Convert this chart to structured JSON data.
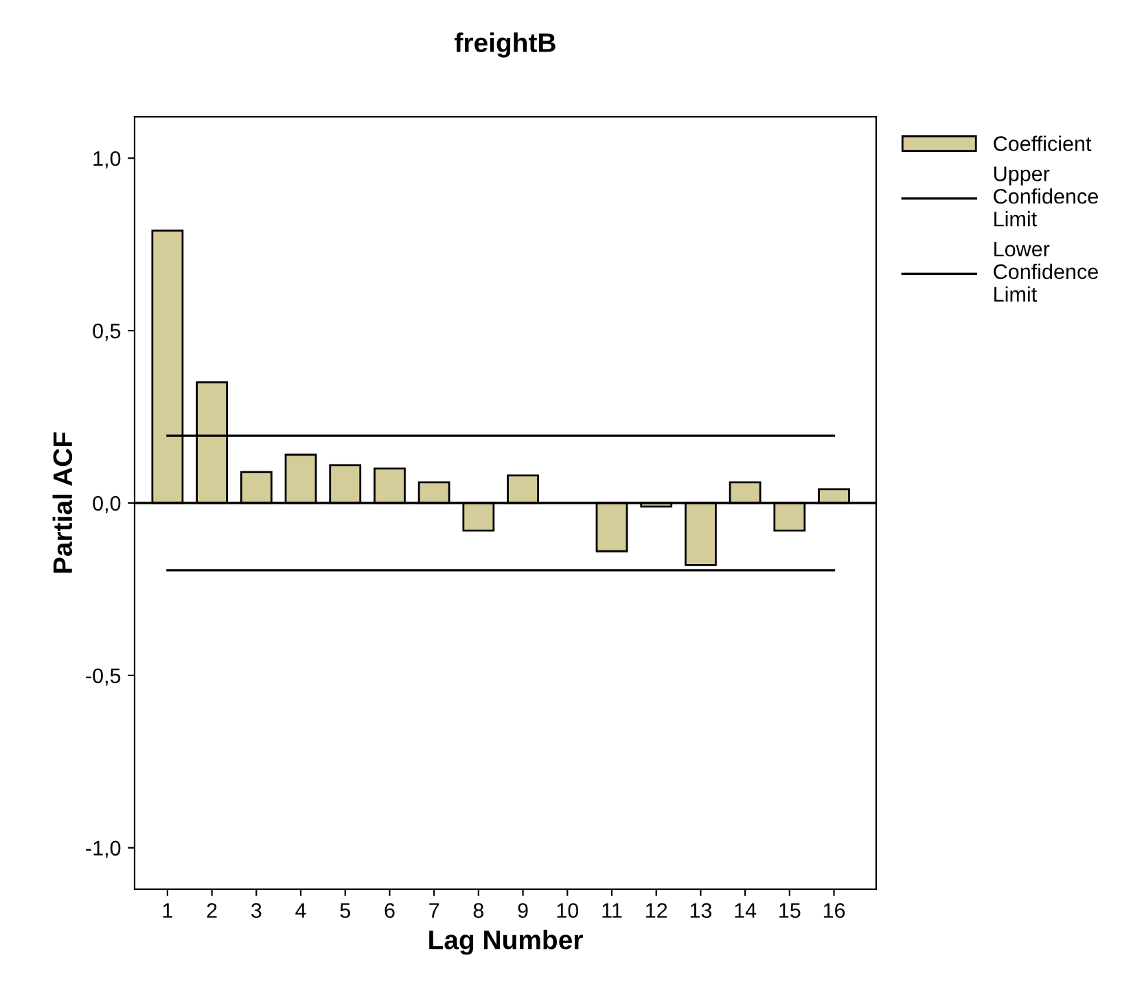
{
  "chart_data": {
    "type": "bar",
    "title": "freightB",
    "xlabel": "Lag Number",
    "ylabel": "Partial ACF",
    "categories": [
      "1",
      "2",
      "3",
      "4",
      "5",
      "6",
      "7",
      "8",
      "9",
      "10",
      "11",
      "12",
      "13",
      "14",
      "15",
      "16"
    ],
    "series": [
      {
        "name": "Coefficient",
        "color": "#d4cc99",
        "values": [
          0.79,
          0.35,
          0.09,
          0.14,
          0.11,
          0.1,
          0.06,
          -0.08,
          0.08,
          null,
          -0.14,
          -0.01,
          -0.18,
          0.06,
          -0.08,
          0.04
        ]
      },
      {
        "name": "Upper Confidence Limit",
        "type": "line",
        "color": "#000000",
        "values": [
          0.195,
          0.195,
          0.195,
          0.195,
          0.195,
          0.195,
          0.195,
          0.195,
          0.195,
          0.195,
          0.195,
          0.195,
          0.195,
          0.195,
          0.195,
          0.195
        ]
      },
      {
        "name": "Lower Confidence Limit",
        "type": "line",
        "color": "#000000",
        "values": [
          -0.195,
          -0.195,
          -0.195,
          -0.195,
          -0.195,
          -0.195,
          -0.195,
          -0.195,
          -0.195,
          -0.195,
          -0.195,
          -0.195,
          -0.195,
          -0.195,
          -0.195,
          -0.195
        ]
      }
    ],
    "ylim": [
      -1.12,
      1.12
    ],
    "yticks": [
      {
        "value": -1.0,
        "label": "-1,0"
      },
      {
        "value": -0.5,
        "label": "-0,5"
      },
      {
        "value": 0.0,
        "label": "0,0"
      },
      {
        "value": 0.5,
        "label": "0,5"
      },
      {
        "value": 1.0,
        "label": "1,0"
      }
    ],
    "ref_lines": [
      {
        "axis": "y",
        "value": 0.0,
        "color": "#000000"
      }
    ],
    "legend": "top right",
    "grid": false
  }
}
